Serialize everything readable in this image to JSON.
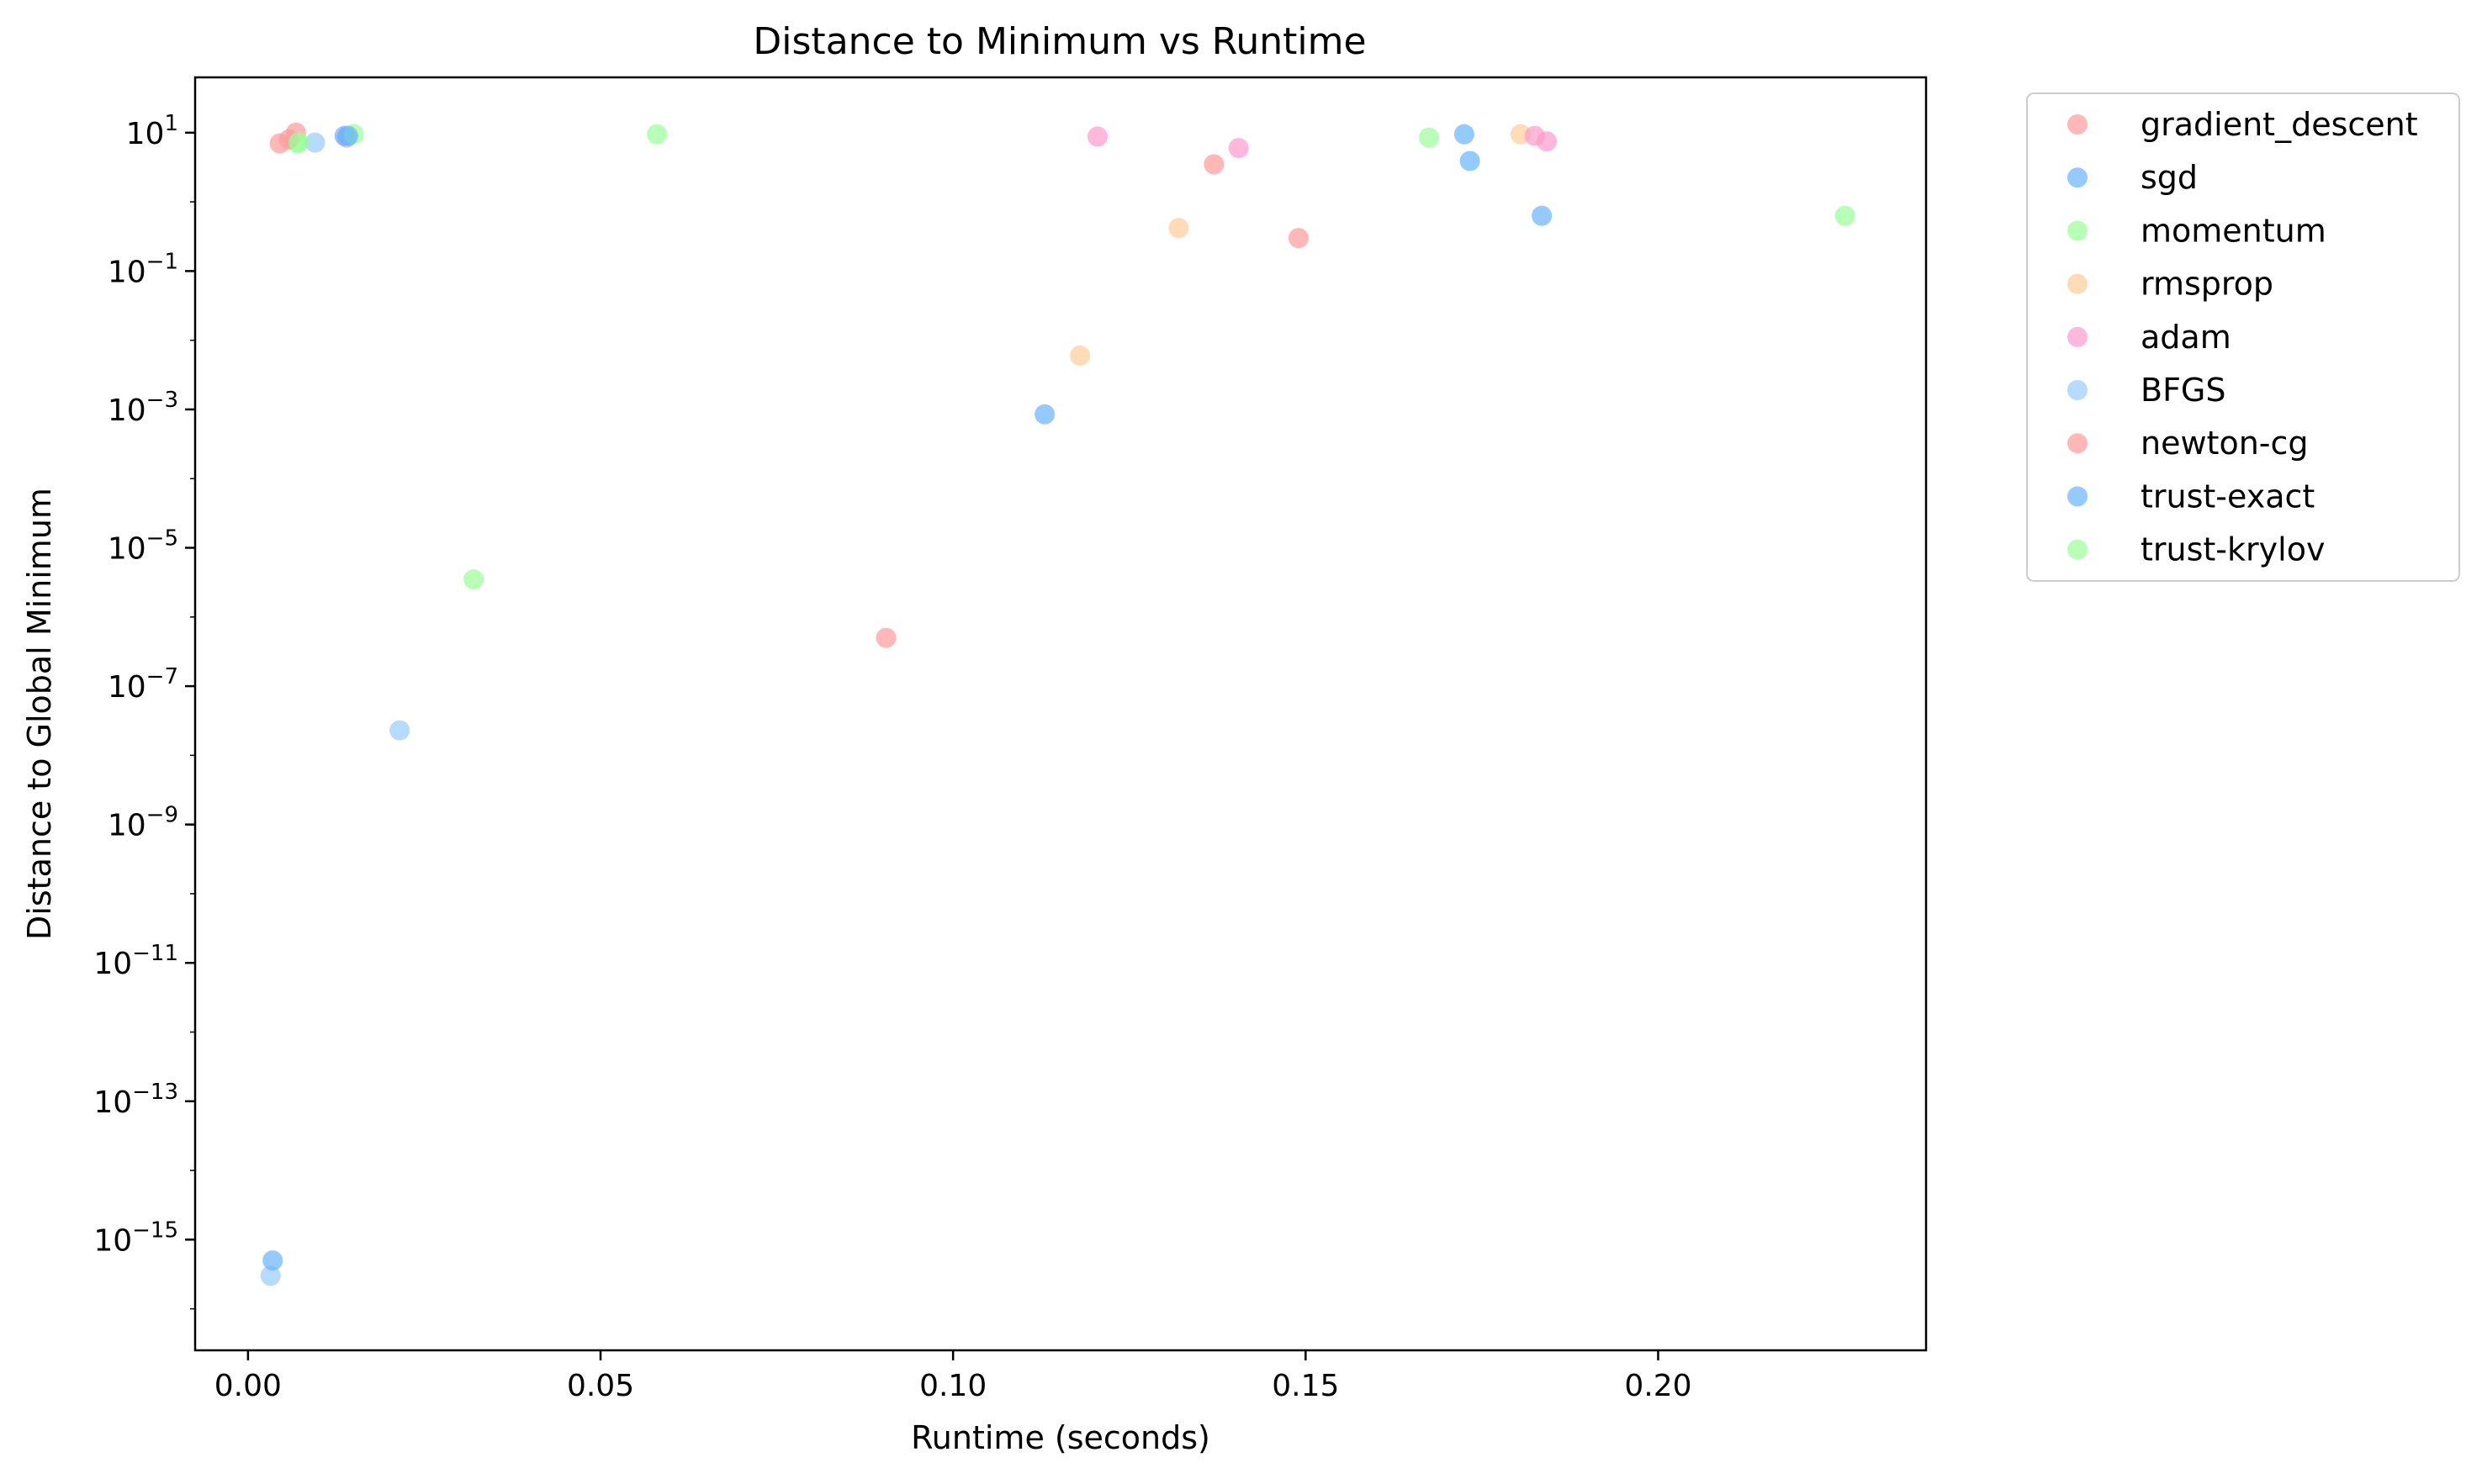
{
  "chart_data": {
    "type": "scatter",
    "title": "Distance to Minimum vs Runtime",
    "xlabel": "Runtime (seconds)",
    "ylabel": "Distance to Global Minimum",
    "xlim": [
      -0.0075,
      0.238
    ],
    "ylim_log10": [
      -16.6,
      1.8
    ],
    "yscale": "log",
    "x_ticks": [
      {
        "value": 0.0,
        "label": "0.00"
      },
      {
        "value": 0.05,
        "label": "0.05"
      },
      {
        "value": 0.1,
        "label": "0.10"
      },
      {
        "value": 0.15,
        "label": "0.15"
      },
      {
        "value": 0.2,
        "label": "0.20"
      }
    ],
    "y_ticks": [
      {
        "exp": 1,
        "base": "10",
        "sup": "1"
      },
      {
        "exp": -1,
        "base": "10",
        "sup": "−1"
      },
      {
        "exp": -3,
        "base": "10",
        "sup": "−3"
      },
      {
        "exp": -5,
        "base": "10",
        "sup": "−5"
      },
      {
        "exp": -7,
        "base": "10",
        "sup": "−7"
      },
      {
        "exp": -9,
        "base": "10",
        "sup": "−9"
      },
      {
        "exp": -11,
        "base": "10",
        "sup": "−11"
      },
      {
        "exp": -13,
        "base": "10",
        "sup": "−13"
      },
      {
        "exp": -15,
        "base": "10",
        "sup": "−15"
      }
    ],
    "grid": false,
    "legend_position": "outside-top-right",
    "series": [
      {
        "name": "gradient_descent",
        "color": "#ff9999",
        "points": [
          [
            0.0045,
            7.0
          ],
          [
            0.0068,
            10.0
          ],
          [
            0.014,
            8.5
          ],
          [
            0.137,
            3.5
          ],
          [
            0.149,
            0.3
          ]
        ]
      },
      {
        "name": "sgd",
        "color": "#66b3ff",
        "points": [
          [
            0.0137,
            9.0
          ],
          [
            0.1725,
            9.5
          ],
          [
            0.1733,
            3.9
          ],
          [
            0.1835,
            0.63
          ],
          [
            0.113,
            0.00085
          ]
        ]
      },
      {
        "name": "momentum",
        "color": "#99ff99",
        "points": [
          [
            0.007,
            7.0
          ],
          [
            0.015,
            9.5
          ],
          [
            0.058,
            9.5
          ],
          [
            0.1675,
            8.5
          ],
          [
            0.2265,
            0.63
          ],
          [
            0.032,
            3.5e-06
          ]
        ]
      },
      {
        "name": "rmsprop",
        "color": "#ffcc99",
        "points": [
          [
            0.1805,
            9.5
          ],
          [
            0.132,
            0.42
          ],
          [
            0.118,
            0.006
          ]
        ]
      },
      {
        "name": "adam",
        "color": "#ff99cc",
        "points": [
          [
            0.1205,
            8.8
          ],
          [
            0.1405,
            6.0
          ],
          [
            0.1825,
            9.0
          ],
          [
            0.1842,
            7.5
          ]
        ]
      },
      {
        "name": "BFGS",
        "color": "#99ccff",
        "points": [
          [
            0.0095,
            7.2
          ],
          [
            0.0215,
            2.3e-08
          ],
          [
            0.0032,
            3e-16
          ]
        ]
      },
      {
        "name": "newton-cg",
        "color": "#ff9999",
        "points": [
          [
            0.0058,
            8.0
          ],
          [
            0.0905,
            5e-07
          ]
        ]
      },
      {
        "name": "trust-exact",
        "color": "#66b3ff",
        "points": [
          [
            0.0035,
            5e-16
          ],
          [
            0.0142,
            9.0
          ]
        ]
      },
      {
        "name": "trust-krylov",
        "color": "#99ff99",
        "points": [
          [
            0.0072,
            7.3
          ]
        ]
      }
    ]
  }
}
